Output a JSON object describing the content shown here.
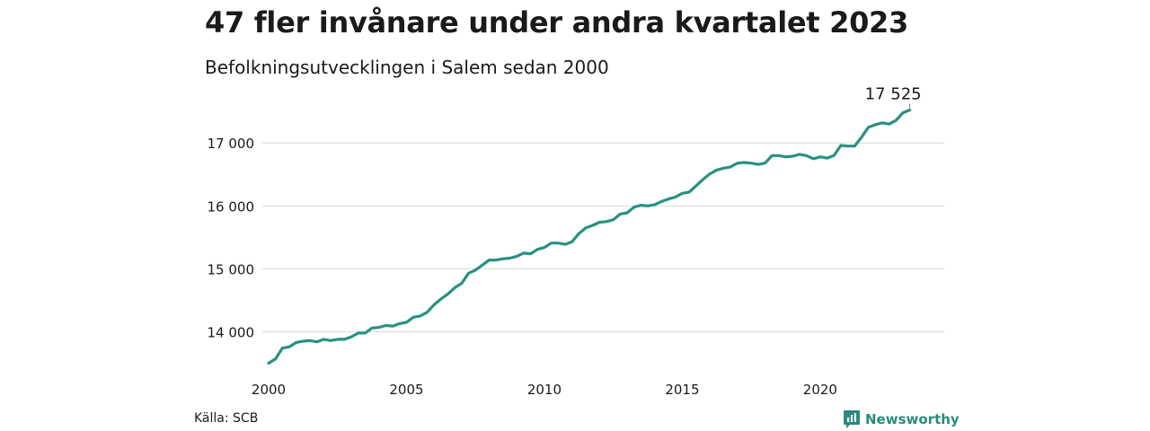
{
  "title": "47 fler invånare under andra kvartalet 2023",
  "subtitle": "Befolkningsutvecklingen i Salem sedan 2000",
  "source": "Källa: SCB",
  "brand": {
    "name": "Newsworthy",
    "icon": "bar-chart-logo-icon",
    "color": "#2a8a7e"
  },
  "chart_data": {
    "type": "line",
    "title": "47 fler invånare under andra kvartalet 2023",
    "subtitle": "Befolkningsutvecklingen i Salem sedan 2000",
    "xlabel": "",
    "ylabel": "",
    "xlim": [
      2000,
      2024.5
    ],
    "ylim": [
      13450,
      17560
    ],
    "x_ticks": [
      2000,
      2005,
      2010,
      2015,
      2020
    ],
    "x_tick_labels": [
      "2000",
      "2005",
      "2010",
      "2015",
      "2020"
    ],
    "y_ticks": [
      14000,
      15000,
      16000,
      17000
    ],
    "y_tick_labels": [
      "14 000",
      "15 000",
      "16 000",
      "17 000"
    ],
    "grid": "horizontal",
    "line_color": "#2a9180",
    "last_label": "17 525",
    "series": [
      {
        "x": [
          2000.0,
          2000.25,
          2000.5,
          2000.75,
          2001.0,
          2001.25,
          2001.5,
          2001.75,
          2002.0,
          2002.25,
          2002.5,
          2002.75,
          2003.0,
          2003.25,
          2003.5,
          2003.75,
          2004.0,
          2004.25,
          2004.5,
          2004.75,
          2005.0,
          2005.25,
          2005.5,
          2005.75,
          2006.0,
          2006.25,
          2006.5,
          2006.75,
          2007.0,
          2007.25,
          2007.5,
          2007.75,
          2008.0,
          2008.25,
          2008.5,
          2008.75,
          2009.0,
          2009.25,
          2009.5,
          2009.75,
          2010.0,
          2010.25,
          2010.5,
          2010.75,
          2011.0,
          2011.25,
          2011.5,
          2011.75,
          2012.0,
          2012.25,
          2012.5,
          2012.75,
          2013.0,
          2013.25,
          2013.5,
          2013.75,
          2014.0,
          2014.25,
          2014.5,
          2014.75,
          2015.0,
          2015.25,
          2015.5,
          2015.75,
          2016.0,
          2016.25,
          2016.5,
          2016.75,
          2017.0,
          2017.25,
          2017.5,
          2017.75,
          2018.0,
          2018.25,
          2018.5,
          2018.75,
          2019.0,
          2019.25,
          2019.5,
          2019.75,
          2020.0,
          2020.25,
          2020.5,
          2020.75,
          2021.0,
          2021.25,
          2021.5,
          2021.75,
          2022.0,
          2022.25,
          2022.5,
          2022.75,
          2023.0,
          2023.25
        ],
        "values": [
          13500,
          13570,
          13740,
          13760,
          13830,
          13850,
          13860,
          13840,
          13880,
          13860,
          13880,
          13880,
          13920,
          13980,
          13980,
          14060,
          14070,
          14100,
          14090,
          14130,
          14150,
          14230,
          14250,
          14310,
          14430,
          14520,
          14600,
          14700,
          14770,
          14930,
          14980,
          15060,
          15140,
          15140,
          15160,
          15170,
          15200,
          15250,
          15240,
          15310,
          15340,
          15410,
          15410,
          15390,
          15430,
          15560,
          15650,
          15690,
          15740,
          15750,
          15780,
          15870,
          15890,
          15980,
          16010,
          16000,
          16020,
          16070,
          16110,
          16140,
          16200,
          16220,
          16320,
          16420,
          16510,
          16570,
          16600,
          16620,
          16680,
          16690,
          16680,
          16660,
          16680,
          16800,
          16800,
          16780,
          16790,
          16820,
          16800,
          16750,
          16780,
          16760,
          16800,
          16960,
          16950,
          16950,
          17090,
          17250,
          17290,
          17320,
          17300,
          17360,
          17480,
          17525
        ]
      }
    ]
  }
}
